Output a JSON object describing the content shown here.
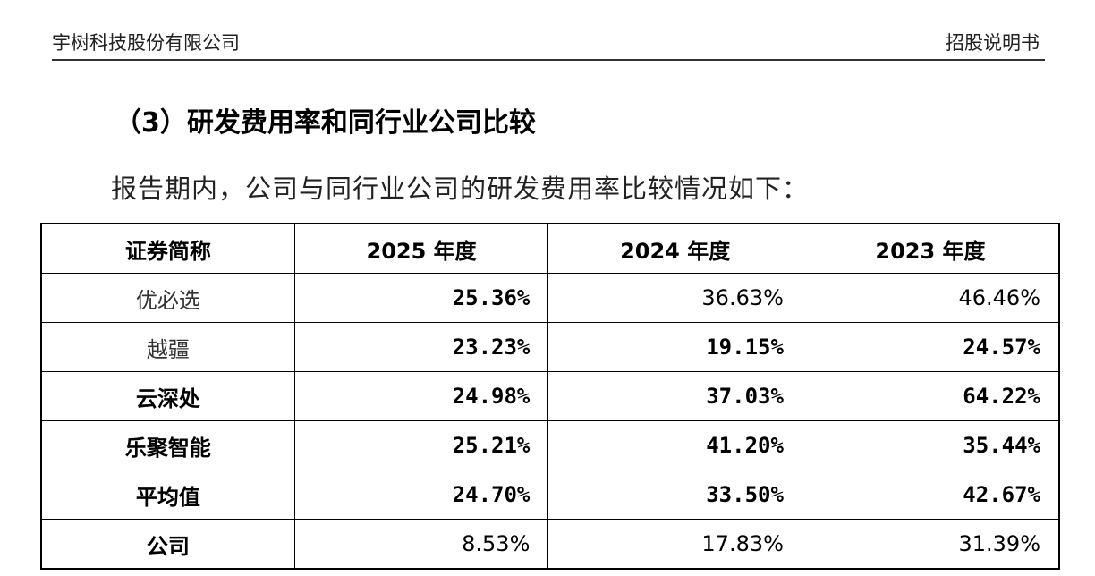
{
  "header": {
    "left": "宇树科技股份有限公司",
    "right": "招股说明书"
  },
  "section_title": "（3）研发费用率和同行业公司比较",
  "intro": "报告期内，公司与同行业公司的研发费用率比较情况如下：",
  "table": {
    "columns": [
      "证券简称",
      "2025 年度",
      "2024 年度",
      "2023 年度"
    ],
    "rows": [
      {
        "name": "优必选",
        "v2025": "25.36%",
        "v2024": "36.63%",
        "v2023": "46.46%"
      },
      {
        "name": "越疆",
        "v2025": "23.23%",
        "v2024": "19.15%",
        "v2023": "24.57%"
      },
      {
        "name": "云深处",
        "v2025": "24.98%",
        "v2024": "37.03%",
        "v2023": "64.22%"
      },
      {
        "name": "乐聚智能",
        "v2025": "25.21%",
        "v2024": "41.20%",
        "v2023": "35.44%"
      },
      {
        "name": "平均值",
        "v2025": "24.70%",
        "v2024": "33.50%",
        "v2023": "42.67%"
      },
      {
        "name": "公司",
        "v2025": "8.53%",
        "v2024": "17.83%",
        "v2023": "31.39%"
      }
    ]
  }
}
